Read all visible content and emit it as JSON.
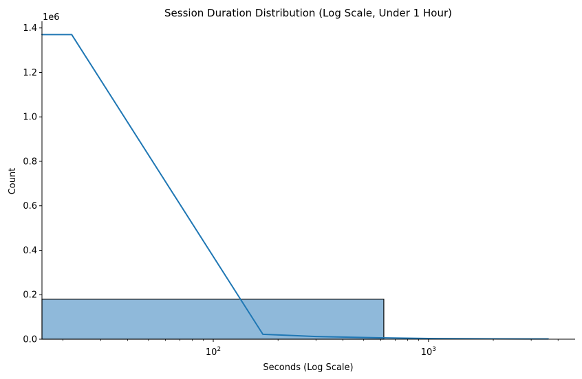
{
  "chart_data": {
    "type": "histogram",
    "title": "Session Duration Distribution (Log Scale, Under 1 Hour)",
    "xlabel": "Seconds (Log Scale)",
    "ylabel": "Count",
    "y_offset_label": "1e6",
    "x_scale": "log",
    "xlim": [
      16,
      4800
    ],
    "ylim": [
      0,
      1.43
    ],
    "grid": false,
    "x_ticks": [
      {
        "value": 100,
        "base": "10",
        "exp": "2"
      },
      {
        "value": 1000,
        "base": "10",
        "exp": "3"
      }
    ],
    "y_ticks": [
      {
        "value": 0.0,
        "label": "0.0"
      },
      {
        "value": 0.2,
        "label": "0.2"
      },
      {
        "value": 0.4,
        "label": "0.4"
      },
      {
        "value": 0.6,
        "label": "0.6"
      },
      {
        "value": 0.8,
        "label": "0.8"
      },
      {
        "value": 1.0,
        "label": "1.0"
      },
      {
        "value": 1.2,
        "label": "1.2"
      },
      {
        "value": 1.4,
        "label": "1.4"
      }
    ],
    "bars": [
      {
        "x_start": 16,
        "x_end": 620,
        "value": 0.18
      },
      {
        "x_start": 620,
        "x_end": 3600,
        "value": 0.0
      }
    ],
    "kde_line": {
      "x": [
        16,
        22,
        170,
        300,
        600,
        1000,
        2000,
        3600
      ],
      "y": [
        1.37,
        1.37,
        0.022,
        0.012,
        0.006,
        0.003,
        0.0015,
        0.001
      ]
    },
    "colors": {
      "bar_fill": "#8fb9da",
      "bar_edge": "#000000",
      "line": "#1f77b4",
      "axis": "#000000"
    }
  }
}
